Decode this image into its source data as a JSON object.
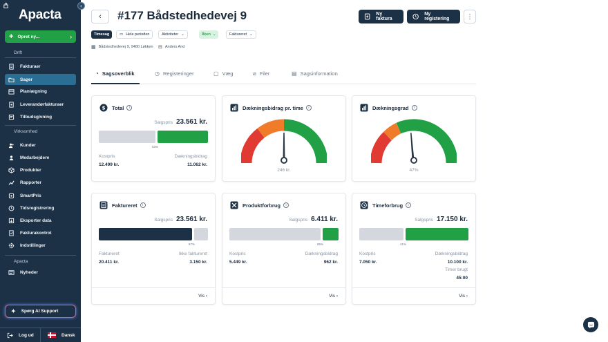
{
  "app": {
    "logo": "Apacta",
    "collapse_icon": "chevron-left-icon",
    "create_label": "Opret ny..."
  },
  "sidebar": {
    "sections": [
      {
        "label": "Drift"
      },
      {
        "label": "Virksomhed"
      },
      {
        "label": "Apacta"
      }
    ],
    "items": [
      {
        "label": "Fakturaer",
        "icon": "invoice-icon"
      },
      {
        "label": "Sager",
        "icon": "folder-icon",
        "active": true
      },
      {
        "label": "Planlægning",
        "icon": "calendar-icon"
      },
      {
        "label": "Leverandørfakturaer",
        "icon": "supplier-invoice-icon"
      },
      {
        "label": "Tilbudsgivning",
        "icon": "quote-icon"
      },
      {
        "label": "Kunder",
        "icon": "customers-icon"
      },
      {
        "label": "Medarbejdere",
        "icon": "employees-icon"
      },
      {
        "label": "Produkter",
        "icon": "box-icon"
      },
      {
        "label": "Rapporter",
        "icon": "chart-icon"
      },
      {
        "label": "SmartPris",
        "icon": "smartprice-icon"
      },
      {
        "label": "Tidsregistrering",
        "icon": "clock-icon"
      },
      {
        "label": "Eksporter data",
        "icon": "export-icon"
      },
      {
        "label": "Fakturakontrol",
        "icon": "invoice-check-icon"
      },
      {
        "label": "Indstillinger",
        "icon": "gear-icon"
      },
      {
        "label": "Nyheder",
        "icon": "news-icon"
      }
    ],
    "ai_support": "Spørg AI Support",
    "logout": "Log ud",
    "language": "Dansk"
  },
  "header": {
    "title": "#177 Bådstedhedevej 9",
    "new_invoice": "Ny faktura",
    "new_registration": "Ny registering",
    "more": "⋮"
  },
  "chips": {
    "type": "Timesag",
    "period": "Hele perioden",
    "activities": "Aktiviteter",
    "status": "Åben",
    "invoiced": "Faktureret"
  },
  "meta": {
    "address": "Bådstedhedevej 9, 9480 Løkken",
    "person": "Anders And"
  },
  "tabs": [
    {
      "label": "Sagsoverblik",
      "icon": "chart-tab-icon"
    },
    {
      "label": "Registeringer",
      "icon": "clock-tab-icon"
    },
    {
      "label": "Væg",
      "icon": "chat-tab-icon"
    },
    {
      "label": "Filer",
      "icon": "paperclip-tab-icon"
    },
    {
      "label": "Sagsinformation",
      "icon": "document-tab-icon"
    }
  ],
  "colors": {
    "navy": "#1c3146",
    "green": "#22a046",
    "grey": "#d4d8de",
    "red": "#e03a32",
    "orange": "#f07c2a"
  },
  "cards": {
    "total": {
      "title": "Total",
      "sale_label": "Salgspris",
      "sale_value": "23.561 kr.",
      "pct": "53%",
      "cost_label": "Kostpris",
      "cost_value": "12.499 kr.",
      "db_label": "Dækningsbidrag",
      "db_value": "11.062 kr.",
      "split": 0.53
    },
    "db_time": {
      "title": "Dækningsbidrag pr. time",
      "value": "246 kr."
    },
    "db_grade": {
      "title": "Dækningsgrad",
      "value": "47%"
    },
    "faktureret": {
      "title": "Faktureret",
      "sale_label": "Salgspris",
      "sale_value": "23.561 kr.",
      "pct": "87%",
      "left_label": "Faktureret",
      "left_value": "20.411 kr.",
      "right_label": "Ikke faktureret",
      "right_value": "3.150 kr.",
      "split": 0.87,
      "link": "Vis"
    },
    "produkt": {
      "title": "Produktforbrug",
      "sale_label": "Salgspris",
      "sale_value": "6.411 kr.",
      "pct": "85%",
      "cost_label": "Kostpris",
      "cost_value": "5.449 kr.",
      "db_label": "Dækningsbidrag",
      "db_value": "962 kr.",
      "split": 0.85,
      "link": "Vis"
    },
    "time": {
      "title": "Timeforbrug",
      "sale_label": "Salgspris",
      "sale_value": "17.150 kr.",
      "pct": "41%",
      "cost_label": "Kostpris",
      "cost_value": "7.050 kr.",
      "db_label": "Dækningsbidrag",
      "db_value": "10.100 kr.",
      "hours_label": "Timer brugt",
      "hours_value": "45:00",
      "split": 0.41,
      "link": "Vis"
    }
  }
}
